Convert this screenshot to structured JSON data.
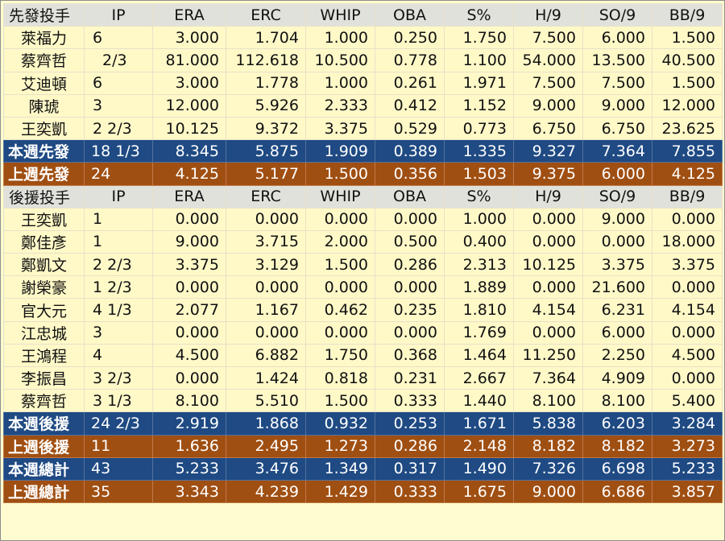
{
  "starters": {
    "header": [
      "先發投手",
      "IP",
      "ERA",
      "ERC",
      "WHIP",
      "OBA",
      "S%",
      "H/9",
      "SO/9",
      "BB/9"
    ],
    "rows": [
      [
        "萊福力",
        "6",
        "3.000",
        "1.704",
        "1.000",
        "0.250",
        "1.750",
        "7.500",
        "6.000",
        "1.500"
      ],
      [
        "蔡齊哲",
        "2/3",
        "81.000",
        "112.618",
        "10.500",
        "0.778",
        "1.100",
        "54.000",
        "13.500",
        "40.500"
      ],
      [
        "艾迪頓",
        "6",
        "3.000",
        "1.778",
        "1.000",
        "0.261",
        "1.971",
        "7.500",
        "7.500",
        "1.500"
      ],
      [
        "陳琥",
        "3",
        "12.000",
        "5.926",
        "2.333",
        "0.412",
        "1.152",
        "9.000",
        "9.000",
        "12.000"
      ],
      [
        "王奕凱",
        "2 2/3",
        "10.125",
        "9.372",
        "3.375",
        "0.529",
        "0.773",
        "6.750",
        "6.750",
        "23.625"
      ]
    ],
    "this_week": [
      "本週先發",
      "18 1/3",
      "8.345",
      "5.875",
      "1.909",
      "0.389",
      "1.335",
      "9.327",
      "7.364",
      "7.855"
    ],
    "last_week": [
      "上週先發",
      "24",
      "4.125",
      "5.177",
      "1.500",
      "0.356",
      "1.503",
      "9.375",
      "6.000",
      "4.125"
    ]
  },
  "relievers": {
    "header": [
      "後援投手",
      "IP",
      "ERA",
      "ERC",
      "WHIP",
      "OBA",
      "S%",
      "H/9",
      "SO/9",
      "BB/9"
    ],
    "rows": [
      [
        "王奕凱",
        "1",
        "0.000",
        "0.000",
        "0.000",
        "0.000",
        "1.000",
        "0.000",
        "9.000",
        "0.000"
      ],
      [
        "鄭佳彥",
        "1",
        "9.000",
        "3.715",
        "2.000",
        "0.500",
        "0.400",
        "0.000",
        "0.000",
        "18.000"
      ],
      [
        "鄭凱文",
        "2 2/3",
        "3.375",
        "3.129",
        "1.500",
        "0.286",
        "2.313",
        "10.125",
        "3.375",
        "3.375"
      ],
      [
        "謝榮豪",
        "1 2/3",
        "0.000",
        "0.000",
        "0.000",
        "0.000",
        "1.889",
        "0.000",
        "21.600",
        "0.000"
      ],
      [
        "官大元",
        "4 1/3",
        "2.077",
        "1.167",
        "0.462",
        "0.235",
        "1.810",
        "4.154",
        "6.231",
        "4.154"
      ],
      [
        "江忠城",
        "3",
        "0.000",
        "0.000",
        "0.000",
        "0.000",
        "1.769",
        "0.000",
        "6.000",
        "0.000"
      ],
      [
        "王鴻程",
        "4",
        "4.500",
        "6.882",
        "1.750",
        "0.368",
        "1.464",
        "11.250",
        "2.250",
        "4.500"
      ],
      [
        "李振昌",
        "3 2/3",
        "0.000",
        "1.424",
        "0.818",
        "0.231",
        "2.667",
        "7.364",
        "4.909",
        "0.000"
      ],
      [
        "蔡齊哲",
        "3 1/3",
        "8.100",
        "5.510",
        "1.500",
        "0.333",
        "1.440",
        "8.100",
        "8.100",
        "5.400"
      ]
    ],
    "this_week": [
      "本週後援",
      "24 2/3",
      "2.919",
      "1.868",
      "0.932",
      "0.253",
      "1.671",
      "5.838",
      "6.203",
      "3.284"
    ],
    "last_week": [
      "上週後援",
      "11",
      "1.636",
      "2.495",
      "1.273",
      "0.286",
      "2.148",
      "8.182",
      "8.182",
      "3.273"
    ]
  },
  "totals": {
    "this_week": [
      "本週總計",
      "43",
      "5.233",
      "3.476",
      "1.349",
      "0.317",
      "1.490",
      "7.326",
      "6.698",
      "5.233"
    ],
    "last_week": [
      "上週總計",
      "35",
      "3.343",
      "4.239",
      "1.429",
      "0.333",
      "1.675",
      "9.000",
      "6.686",
      "3.857"
    ]
  },
  "colors": {
    "header_bg": "#e1e1dc",
    "row_bg": "#fff9c8",
    "this_week_bg": "#1f4a83",
    "last_week_bg": "#a04f12"
  }
}
